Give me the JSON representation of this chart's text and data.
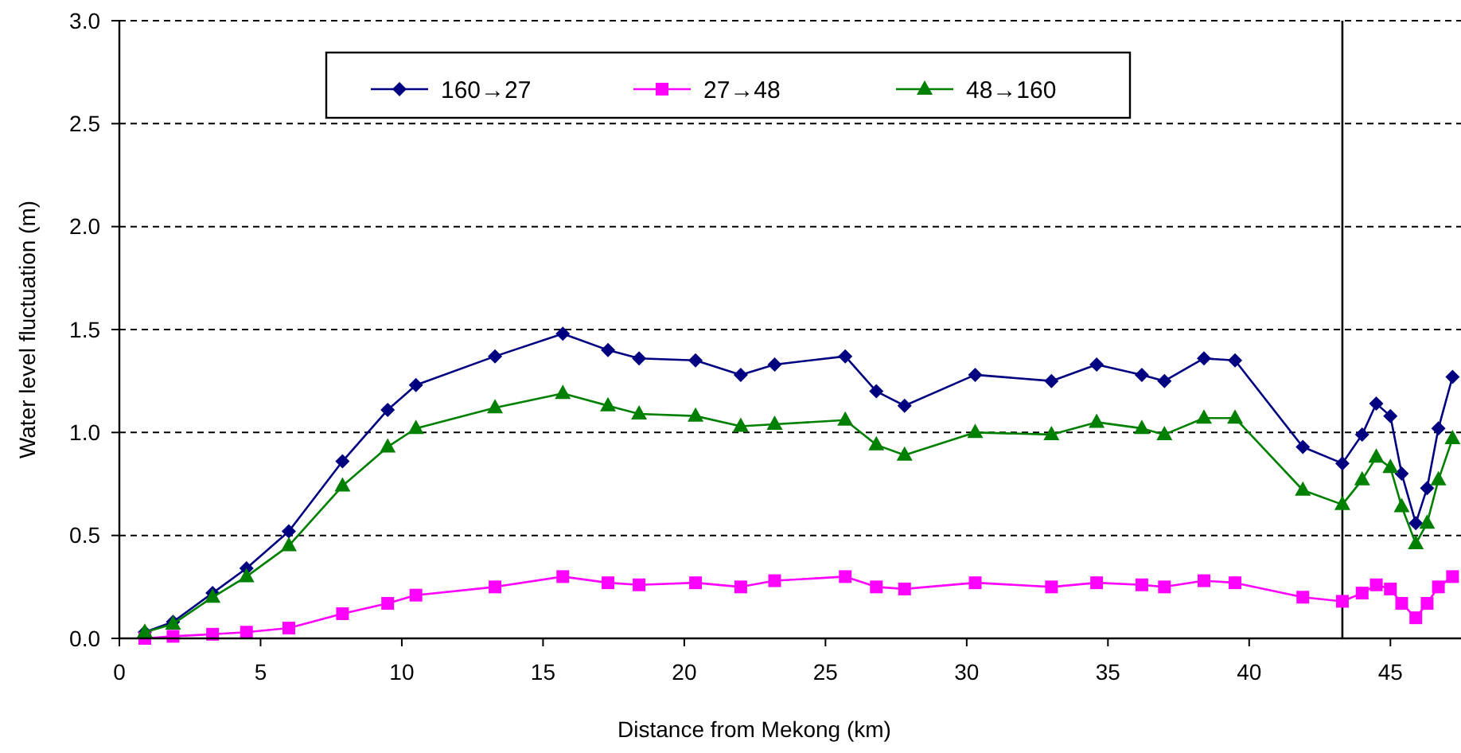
{
  "chart_data": {
    "type": "line",
    "xlabel": "Distance from Mekong (km)",
    "ylabel": "Water level fluctuation (m)",
    "x": [
      0.9,
      1.9,
      3.3,
      4.5,
      6.0,
      7.9,
      9.5,
      10.5,
      13.3,
      15.7,
      17.3,
      18.4,
      20.4,
      22.0,
      23.2,
      25.7,
      26.8,
      27.8,
      30.3,
      33.0,
      34.6,
      36.2,
      37.0,
      38.4,
      39.5,
      41.9,
      43.3,
      44.0,
      44.5,
      45.0,
      45.4,
      45.9,
      46.3,
      46.7,
      47.2
    ],
    "series": [
      {
        "name": "160→27",
        "color": "#000080",
        "marker": "diamond",
        "values": [
          0.03,
          0.08,
          0.22,
          0.34,
          0.52,
          0.86,
          1.11,
          1.23,
          1.37,
          1.48,
          1.4,
          1.36,
          1.35,
          1.28,
          1.33,
          1.37,
          1.2,
          1.13,
          1.28,
          1.25,
          1.33,
          1.28,
          1.25,
          1.36,
          1.35,
          0.93,
          0.85,
          0.99,
          1.14,
          1.08,
          0.8,
          0.56,
          0.73,
          1.02,
          1.27
        ]
      },
      {
        "name": "27→48",
        "color": "#ff00ff",
        "marker": "square",
        "values": [
          0.0,
          0.01,
          0.02,
          0.03,
          0.05,
          0.12,
          0.17,
          0.21,
          0.25,
          0.3,
          0.27,
          0.26,
          0.27,
          0.25,
          0.28,
          0.3,
          0.25,
          0.24,
          0.27,
          0.25,
          0.27,
          0.26,
          0.25,
          0.28,
          0.27,
          0.2,
          0.18,
          0.22,
          0.26,
          0.24,
          0.17,
          0.1,
          0.17,
          0.25,
          0.3
        ]
      },
      {
        "name": "48→160",
        "color": "#008000",
        "marker": "triangle",
        "values": [
          0.03,
          0.07,
          0.2,
          0.3,
          0.45,
          0.74,
          0.93,
          1.02,
          1.12,
          1.19,
          1.13,
          1.09,
          1.08,
          1.03,
          1.04,
          1.06,
          0.94,
          0.89,
          1.0,
          0.99,
          1.05,
          1.02,
          0.99,
          1.07,
          1.07,
          0.72,
          0.65,
          0.77,
          0.88,
          0.83,
          0.64,
          0.46,
          0.56,
          0.77,
          0.97
        ]
      }
    ],
    "xlim": [
      0,
      47.5
    ],
    "xticks": [
      0,
      5,
      10,
      15,
      20,
      25,
      30,
      35,
      40,
      45
    ],
    "ylim": [
      0,
      3
    ],
    "yticks": [
      {
        "value": 0,
        "label": "0.0"
      },
      {
        "value": 0.5,
        "label": "0.5"
      },
      {
        "value": 1,
        "label": "1.0"
      },
      {
        "value": 1.5,
        "label": "1.5"
      },
      {
        "value": 2,
        "label": "2.0"
      },
      {
        "value": 2.5,
        "label": "2.5"
      },
      {
        "value": 3,
        "label": "3.0"
      }
    ],
    "grid": "y",
    "legend": "top",
    "ref_lines": [
      {
        "axis": "x",
        "value": 43.3,
        "color": "#000000"
      }
    ]
  }
}
